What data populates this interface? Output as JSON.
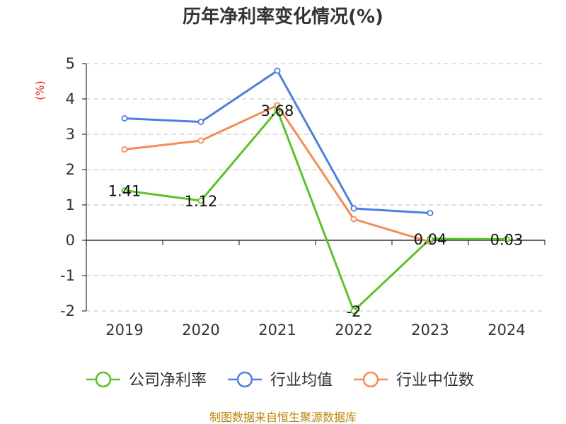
{
  "chart_data": {
    "type": "line",
    "title": "历年净利率变化情况(%)",
    "ylabel": "(%)",
    "categories": [
      "2019",
      "2020",
      "2021",
      "2022",
      "2023",
      "2024"
    ],
    "ylim": [
      -2,
      5
    ],
    "yticks": [
      5,
      4,
      3,
      2,
      1,
      0,
      -1,
      -2
    ],
    "grid": true,
    "legend_position": "bottom",
    "series": [
      {
        "name": "公司净利率",
        "color": "#5cc229",
        "values": [
          1.41,
          1.12,
          3.68,
          -2,
          0.04,
          0.03
        ],
        "labels": [
          "1.41",
          "1.12",
          "3.68",
          "-2",
          "0.04",
          "0.03"
        ]
      },
      {
        "name": "行业均值",
        "color": "#4e7fdc",
        "values": [
          3.45,
          3.35,
          4.8,
          0.9,
          0.77,
          null
        ]
      },
      {
        "name": "行业中位数",
        "color": "#f48c57",
        "values": [
          2.57,
          2.82,
          3.82,
          0.6,
          -0.05,
          null
        ]
      }
    ],
    "source": "制图数据来自恒生聚源数据库"
  }
}
